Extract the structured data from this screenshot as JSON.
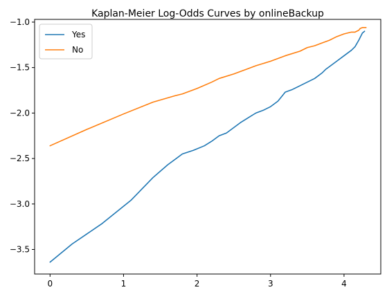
{
  "chart_data": {
    "type": "line",
    "title": "Kaplan-Meier Log-Odds Curves by onlineBackup",
    "xlabel": "",
    "ylabel": "",
    "xlim": [
      -0.21,
      4.5
    ],
    "ylim": [
      -3.77,
      -0.97
    ],
    "xticks": [
      0,
      1,
      2,
      3,
      4
    ],
    "xtick_labels": [
      "0",
      "1",
      "2",
      "3",
      "4"
    ],
    "yticks": [
      -3.5,
      -3.0,
      -2.5,
      -2.0,
      -1.5,
      -1.0
    ],
    "ytick_labels": [
      "−3.5",
      "−3.0",
      "−2.5",
      "−2.0",
      "−1.5",
      "−1.0"
    ],
    "grid": false,
    "legend_position": "top-left",
    "series": [
      {
        "name": "Yes",
        "color": "#1f77b4",
        "x": [
          0,
          0.3,
          0.7,
          1.1,
          1.4,
          1.6,
          1.8,
          1.95,
          2.1,
          2.2,
          2.3,
          2.4,
          2.5,
          2.6,
          2.7,
          2.8,
          2.9,
          3.0,
          3.1,
          3.15,
          3.2,
          3.3,
          3.4,
          3.5,
          3.6,
          3.7,
          3.75,
          3.8,
          3.9,
          4.0,
          4.1,
          4.15,
          4.2,
          4.25,
          4.28
        ],
        "y": [
          -3.64,
          -3.44,
          -3.22,
          -2.96,
          -2.71,
          -2.57,
          -2.45,
          -2.41,
          -2.36,
          -2.31,
          -2.25,
          -2.22,
          -2.16,
          -2.1,
          -2.05,
          -2.0,
          -1.97,
          -1.93,
          -1.87,
          -1.82,
          -1.77,
          -1.74,
          -1.7,
          -1.66,
          -1.62,
          -1.56,
          -1.52,
          -1.49,
          -1.43,
          -1.37,
          -1.31,
          -1.27,
          -1.2,
          -1.12,
          -1.1
        ]
      },
      {
        "name": "No",
        "color": "#ff7f0e",
        "x": [
          0,
          0.5,
          1.0,
          1.4,
          1.7,
          1.8,
          2.0,
          2.2,
          2.3,
          2.5,
          2.7,
          2.8,
          3.0,
          3.2,
          3.4,
          3.5,
          3.6,
          3.7,
          3.8,
          3.9,
          4.0,
          4.1,
          4.15,
          4.2,
          4.22,
          4.25,
          4.3
        ],
        "y": [
          -2.36,
          -2.18,
          -2.01,
          -1.88,
          -1.81,
          -1.79,
          -1.73,
          -1.66,
          -1.62,
          -1.57,
          -1.51,
          -1.48,
          -1.43,
          -1.37,
          -1.32,
          -1.28,
          -1.26,
          -1.23,
          -1.2,
          -1.16,
          -1.13,
          -1.11,
          -1.11,
          -1.09,
          -1.07,
          -1.06,
          -1.06
        ]
      }
    ]
  }
}
